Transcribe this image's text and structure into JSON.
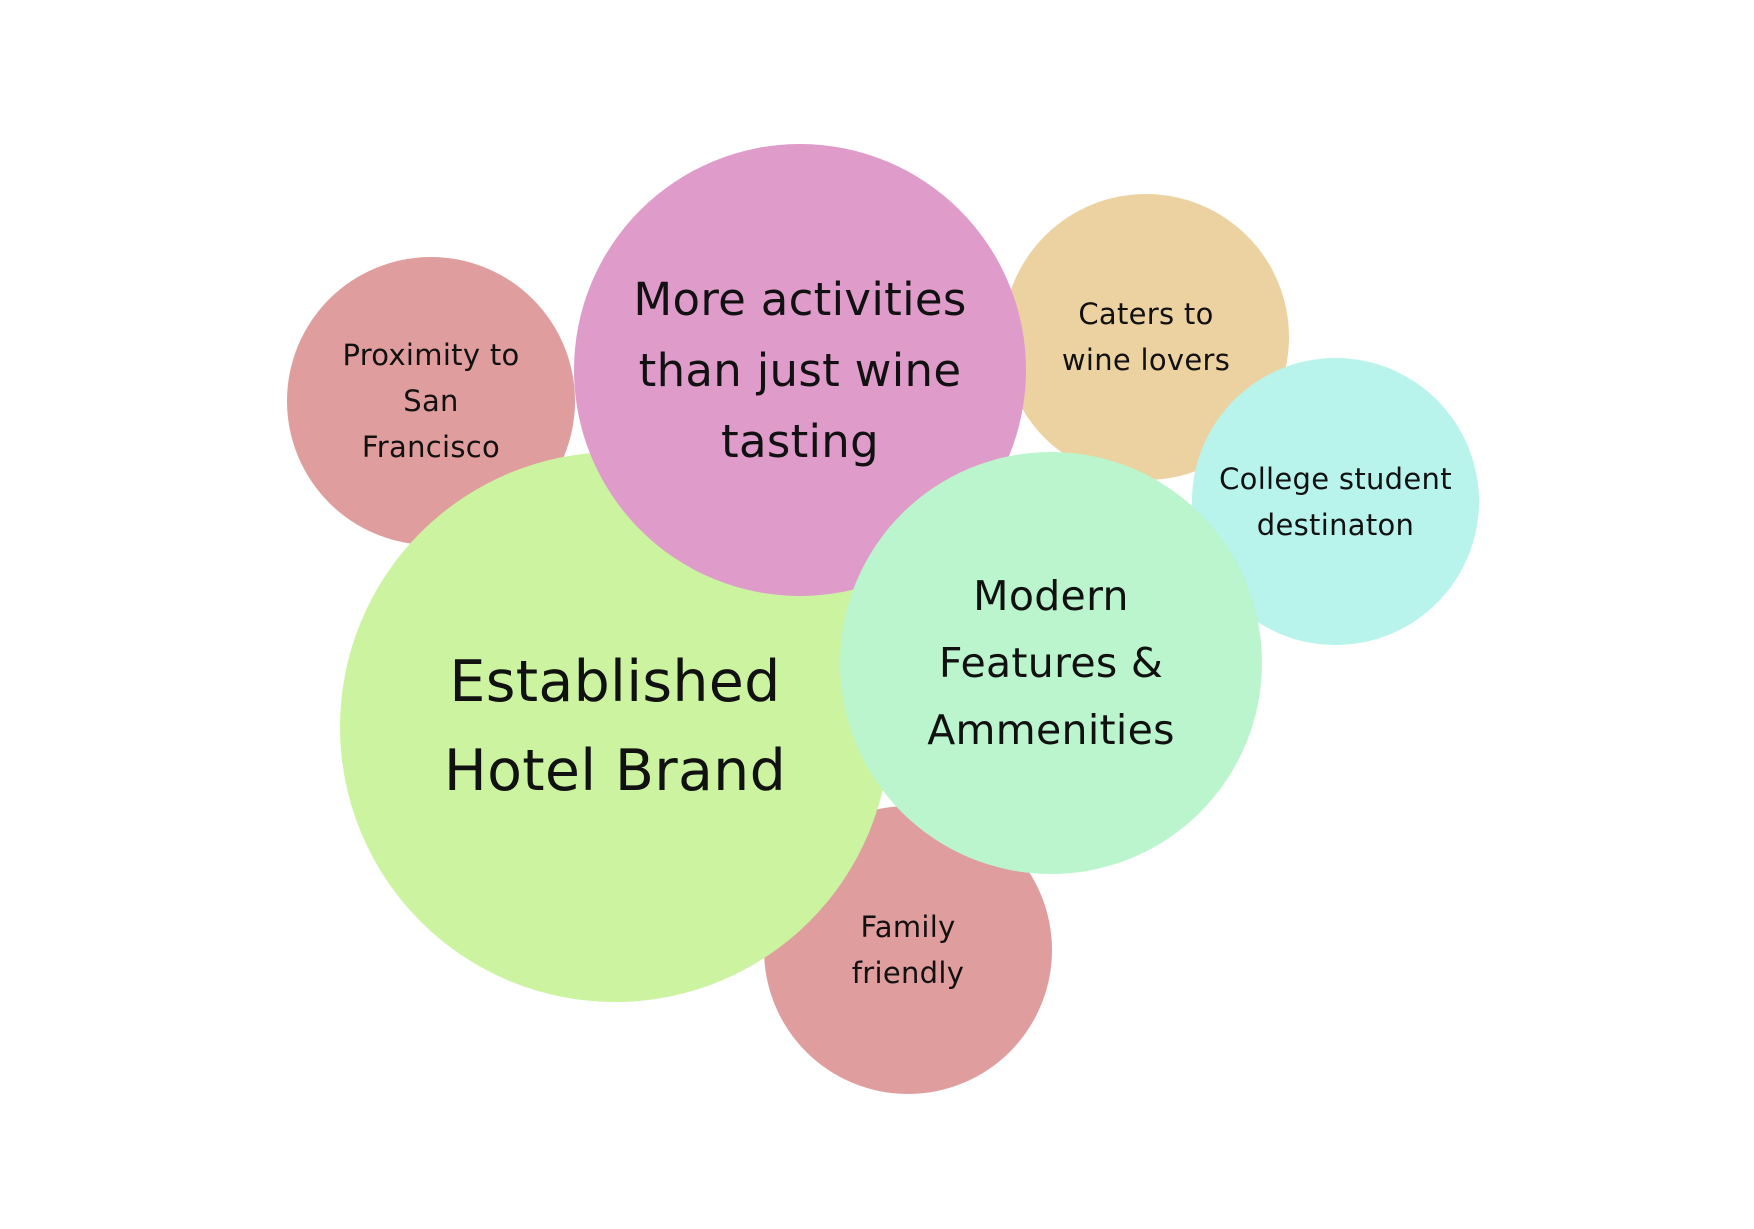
{
  "bubbles": {
    "proximity": {
      "label": "Proximity to\nSan\nFrancisco",
      "color": "#E09D9D"
    },
    "established": {
      "label": "Established\nHotel Brand",
      "color": "#CBF3A0"
    },
    "activities": {
      "label": "More activities\nthan just wine\ntasting",
      "color": "#DF9BC9"
    },
    "caters": {
      "label": "Caters to\nwine lovers",
      "color": "#ECD1A1"
    },
    "college": {
      "label": "College student\ndestinaton",
      "color": "#B8F3EC"
    },
    "family": {
      "label": "Family\nfriendly",
      "color": "#E09D9D"
    },
    "modern": {
      "label": "Modern\nFeatures &\nAmmenities",
      "color": "#BBF5CD"
    }
  }
}
